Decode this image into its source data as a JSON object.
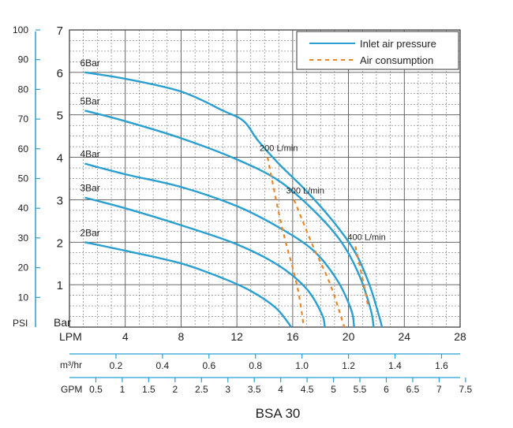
{
  "title": "BSA 30",
  "colors": {
    "inlet": "#2a9fd0",
    "air": "#e8862a",
    "grid": "#555555",
    "psi_axis": "#2a9fd0",
    "text": "#222222"
  },
  "chart_data": {
    "type": "line",
    "title": "BSA 30",
    "x_unit": "LPM",
    "y_unit": "Bar",
    "xlim": [
      0,
      28
    ],
    "ylim": [
      0,
      7
    ],
    "grid": true,
    "legend_position": "top-right",
    "legend": [
      {
        "label": "Inlet air pressure",
        "style": "solid",
        "color": "#2a9fd0"
      },
      {
        "label": "Air consumption",
        "style": "dashed",
        "color": "#e8862a"
      }
    ],
    "x_ticks": [
      "4",
      "8",
      "12",
      "16",
      "20",
      "24",
      "28"
    ],
    "x_tick_values": [
      4,
      8,
      12,
      16,
      20,
      24,
      28
    ],
    "y_ticks": [
      "1",
      "2",
      "3",
      "4",
      "5",
      "6",
      "7"
    ],
    "y_tick_values": [
      1,
      2,
      3,
      4,
      5,
      6,
      7
    ],
    "psi_axis": {
      "label": "PSI",
      "max_psi": 100,
      "bar_at_max": 7,
      "ticks": [
        "10",
        "20",
        "30",
        "40",
        "50",
        "60",
        "70",
        "80",
        "90",
        "100"
      ],
      "tick_values": [
        10,
        20,
        30,
        40,
        50,
        60,
        70,
        80,
        90,
        100
      ]
    },
    "secondary_axes": [
      {
        "label": "m³/hr",
        "lpm_per_unit": 16.667,
        "ticks": [
          "0.2",
          "0.4",
          "0.6",
          "0.8",
          "1.0",
          "1.2",
          "1.4",
          "1.6"
        ],
        "tick_values": [
          0.2,
          0.4,
          0.6,
          0.8,
          1.0,
          1.2,
          1.4,
          1.6
        ]
      },
      {
        "label": "GPM",
        "lpm_per_unit": 3.785,
        "ticks": [
          "0.5",
          "1",
          "1.5",
          "2",
          "2.5",
          "3",
          "3.5",
          "4",
          "4.5",
          "5",
          "5.5",
          "6",
          "6.5",
          "7",
          "7.5"
        ],
        "tick_values": [
          0.5,
          1,
          1.5,
          2,
          2.5,
          3,
          3.5,
          4,
          4.5,
          5,
          5.5,
          6,
          6.5,
          7,
          7.5
        ]
      }
    ],
    "series": [
      {
        "name": "6Bar",
        "kind": "inlet",
        "points": [
          [
            1.1,
            6.0
          ],
          [
            4,
            5.85
          ],
          [
            8,
            5.55
          ],
          [
            11,
            5.1
          ],
          [
            12.5,
            4.85
          ],
          [
            13.5,
            4.4
          ],
          [
            15,
            3.85
          ],
          [
            17,
            3.2
          ],
          [
            19,
            2.45
          ],
          [
            20.5,
            1.75
          ],
          [
            21.5,
            1.0
          ],
          [
            22.2,
            0.25
          ],
          [
            22.4,
            0
          ]
        ]
      },
      {
        "name": "5Bar",
        "kind": "inlet",
        "points": [
          [
            1.1,
            5.1
          ],
          [
            4,
            4.85
          ],
          [
            8,
            4.45
          ],
          [
            12,
            3.95
          ],
          [
            15,
            3.45
          ],
          [
            17.5,
            2.75
          ],
          [
            19.5,
            2.0
          ],
          [
            20.8,
            1.2
          ],
          [
            21.6,
            0.4
          ],
          [
            21.8,
            0
          ]
        ]
      },
      {
        "name": "4Bar",
        "kind": "inlet",
        "points": [
          [
            1.1,
            3.85
          ],
          [
            4,
            3.6
          ],
          [
            8,
            3.3
          ],
          [
            12,
            2.85
          ],
          [
            15,
            2.35
          ],
          [
            17.5,
            1.8
          ],
          [
            19.2,
            1.1
          ],
          [
            20.2,
            0.4
          ],
          [
            20.4,
            0
          ]
        ]
      },
      {
        "name": "3Bar",
        "kind": "inlet",
        "points": [
          [
            1.1,
            3.05
          ],
          [
            4,
            2.8
          ],
          [
            8,
            2.4
          ],
          [
            12,
            1.95
          ],
          [
            15,
            1.45
          ],
          [
            17,
            0.9
          ],
          [
            18.1,
            0.3
          ],
          [
            18.3,
            0
          ]
        ]
      },
      {
        "name": "2Bar",
        "kind": "inlet",
        "points": [
          [
            1.1,
            2.0
          ],
          [
            4,
            1.8
          ],
          [
            8,
            1.5
          ],
          [
            11,
            1.15
          ],
          [
            13,
            0.85
          ],
          [
            14.8,
            0.45
          ],
          [
            15.9,
            0
          ]
        ]
      },
      {
        "name": "200 L/min",
        "kind": "air",
        "points": [
          [
            14.2,
            4.0
          ],
          [
            15.2,
            2.4
          ],
          [
            16.3,
            1.0
          ],
          [
            16.8,
            0
          ]
        ]
      },
      {
        "name": "300 L/min",
        "kind": "air",
        "points": [
          [
            16.1,
            3.0
          ],
          [
            17.4,
            1.95
          ],
          [
            18.7,
            1.0
          ],
          [
            19.7,
            0
          ]
        ]
      },
      {
        "name": "400 L/min",
        "kind": "air",
        "points": [
          [
            20.5,
            1.9
          ],
          [
            21.1,
            1.0
          ],
          [
            21.4,
            0.5
          ]
        ]
      }
    ],
    "curve_labels": [
      "6Bar",
      "5Bar",
      "4Bar",
      "3Bar",
      "2Bar"
    ],
    "air_labels": [
      "200 L/min",
      "300 L/min",
      "400 L/min"
    ]
  }
}
